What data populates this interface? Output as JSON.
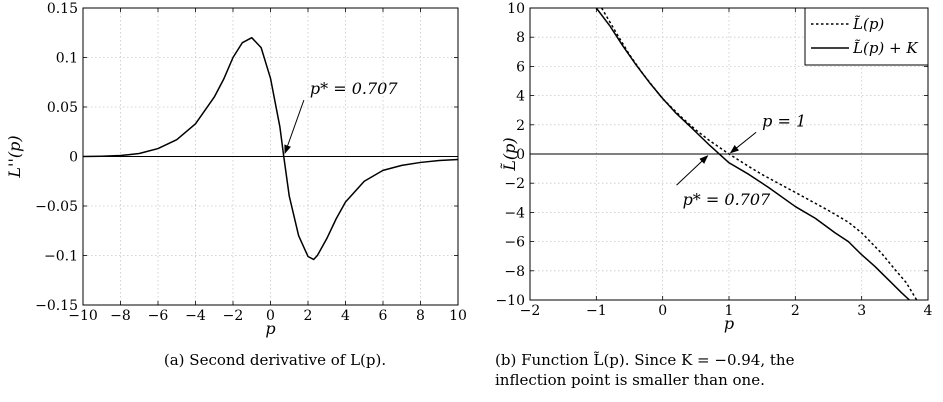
{
  "chart_data": [
    {
      "type": "line",
      "panel": "(a)",
      "caption": "(a) Second derivative of L(p).",
      "xlabel": "p",
      "ylabel": "L''(p)",
      "xlim": [
        -10,
        10
      ],
      "ylim": [
        -0.15,
        0.15
      ],
      "xticks": [
        "−10",
        "−8",
        "−6",
        "−4",
        "−2",
        "0",
        "2",
        "4",
        "6",
        "8",
        "10"
      ],
      "yticks": [
        "0.15",
        "0.1",
        "0.05",
        "0",
        "−0.05",
        "−0.1",
        "−0.15"
      ],
      "grid": true,
      "series": [
        {
          "line_style": "solid",
          "x": [
            -10,
            -9,
            -8,
            -7,
            -6,
            -5,
            -4,
            -3,
            -2.5,
            -2,
            -1.5,
            -1,
            -0.5,
            0,
            0.5,
            0.707,
            1,
            1.5,
            2,
            2.3,
            2.5,
            3,
            3.5,
            4,
            5,
            6,
            7,
            8,
            9,
            10
          ],
          "y": [
            0.0,
            0.0003,
            0.001,
            0.003,
            0.008,
            0.017,
            0.033,
            0.06,
            0.078,
            0.1,
            0.115,
            0.12,
            0.11,
            0.079,
            0.03,
            0.0,
            -0.04,
            -0.08,
            -0.101,
            -0.104,
            -0.1,
            -0.083,
            -0.063,
            -0.046,
            -0.025,
            -0.014,
            -0.009,
            -0.006,
            -0.004,
            -0.003
          ]
        }
      ],
      "hlines": [
        0
      ],
      "annotations": [
        {
          "text": "p* = 0.707",
          "arrow_to": [
            0.707,
            0.0
          ],
          "text_at": [
            2.1,
            0.063
          ]
        }
      ]
    },
    {
      "type": "line",
      "panel": "(b)",
      "caption_line1": "(b) Function L̃(p).  Since K = −0.94, the",
      "caption_line2": "inflection point is smaller than one.",
      "xlabel": "p",
      "ylabel": "L̃(p)",
      "xlim": [
        -2,
        4
      ],
      "ylim": [
        -10,
        10
      ],
      "xticks": [
        "−2",
        "−1",
        "0",
        "1",
        "2",
        "3",
        "4"
      ],
      "yticks": [
        "10",
        "8",
        "6",
        "4",
        "2",
        "0",
        "−2",
        "−4",
        "−6",
        "−8",
        "−10"
      ],
      "grid": true,
      "legend": {
        "position": "top-right",
        "entries": [
          "L̃(p)",
          "L̃(p) + K"
        ]
      },
      "series": [
        {
          "name": "L̃(p)",
          "line_style": "dotted",
          "x": [
            -0.92,
            -0.7,
            -0.5,
            -0.3,
            0.0,
            0.3,
            0.5,
            0.7,
            1.0,
            1.3,
            1.5,
            2.0,
            2.5,
            2.8,
            3.0,
            3.3,
            3.5,
            3.67,
            3.83
          ],
          "y": [
            10.0,
            8.3,
            6.8,
            5.5,
            3.78,
            2.45,
            1.65,
            0.94,
            0.0,
            -0.86,
            -1.41,
            -2.63,
            -3.87,
            -4.67,
            -5.4,
            -6.8,
            -7.9,
            -8.8,
            -10.0
          ]
        },
        {
          "name": "L̃(p) + K",
          "line_style": "solid",
          "x": [
            -1.0,
            -0.8,
            -0.6,
            -0.4,
            -0.2,
            0.0,
            0.2,
            0.4,
            0.707,
            1.0,
            1.3,
            1.6,
            2.0,
            2.3,
            2.6,
            2.8,
            3.0,
            3.2,
            3.4,
            3.6,
            3.72
          ],
          "y": [
            10.0,
            8.8,
            7.4,
            6.1,
            4.9,
            3.8,
            2.8,
            1.95,
            0.6,
            -0.6,
            -1.4,
            -2.3,
            -3.6,
            -4.4,
            -5.4,
            -6.0,
            -6.9,
            -7.7,
            -8.6,
            -9.5,
            -10.0
          ]
        }
      ],
      "hlines": [
        0
      ],
      "annotations": [
        {
          "text": "p = 1",
          "arrow_to": [
            1.0,
            0.0
          ],
          "text_at": [
            1.5,
            1.9
          ]
        },
        {
          "text": "p* = 0.707",
          "arrow_to": [
            0.707,
            0.0
          ],
          "text_at": [
            0.3,
            -3.5
          ]
        }
      ]
    }
  ]
}
